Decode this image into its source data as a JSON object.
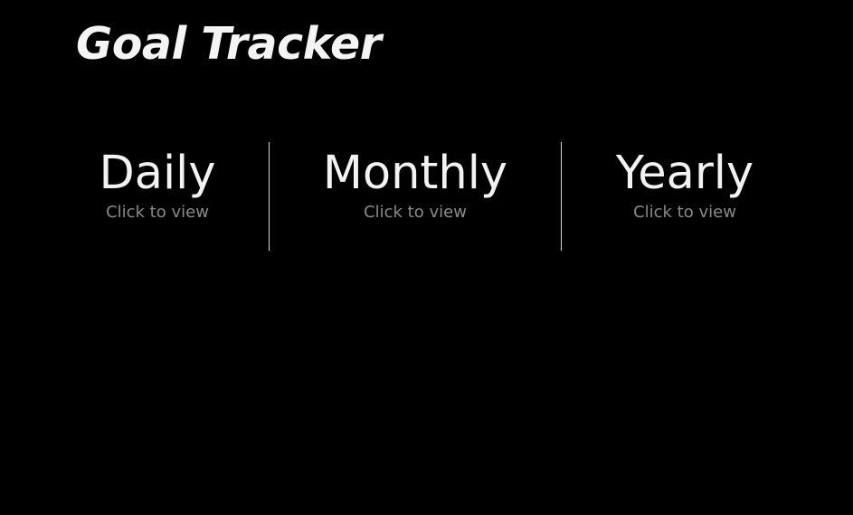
{
  "header": {
    "title": "Goal Tracker"
  },
  "panels": [
    {
      "title": "Daily",
      "subtitle": "Click to view"
    },
    {
      "title": "Monthly",
      "subtitle": "Click to view"
    },
    {
      "title": "Yearly",
      "subtitle": "Click to view"
    }
  ],
  "colors": {
    "background": "#000000",
    "title_text": "#f2f2f2",
    "subtitle_text": "#8a8a8a",
    "divider": "#d8d8d8"
  }
}
